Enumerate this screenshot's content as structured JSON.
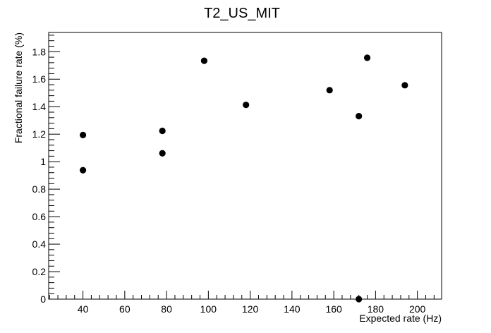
{
  "chart_data": {
    "type": "scatter",
    "title": "T2_US_MIT",
    "xlabel": "Expected rate (Hz)",
    "ylabel": "Fractional failure rate (%)",
    "xlim": [
      23.6,
      211.6
    ],
    "ylim": [
      0,
      1.94
    ],
    "xticks": [
      40,
      60,
      80,
      100,
      120,
      140,
      160,
      180,
      200
    ],
    "xtick_labels": [
      "40",
      "60",
      "80",
      "100",
      "120",
      "140",
      "160",
      "180",
      "200"
    ],
    "yticks": [
      0,
      0.2,
      0.4,
      0.6,
      0.8,
      1,
      1.2,
      1.4,
      1.6,
      1.8
    ],
    "ytick_labels": [
      "0",
      "0.2",
      "0.4",
      "0.6",
      "0.8",
      "1",
      "1.2",
      "1.4",
      "1.6",
      "1.8"
    ],
    "grid": false,
    "legend": false,
    "marker_color": "#000000",
    "points": [
      {
        "x": 40,
        "y": 1.194
      },
      {
        "x": 40,
        "y": 0.938
      },
      {
        "x": 78,
        "y": 1.224
      },
      {
        "x": 78,
        "y": 1.061
      },
      {
        "x": 98,
        "y": 1.734
      },
      {
        "x": 118,
        "y": 1.413
      },
      {
        "x": 158,
        "y": 1.52
      },
      {
        "x": 172,
        "y": 1.331
      },
      {
        "x": 172,
        "y": 0.0
      },
      {
        "x": 176,
        "y": 1.756
      },
      {
        "x": 194,
        "y": 1.556
      }
    ]
  }
}
